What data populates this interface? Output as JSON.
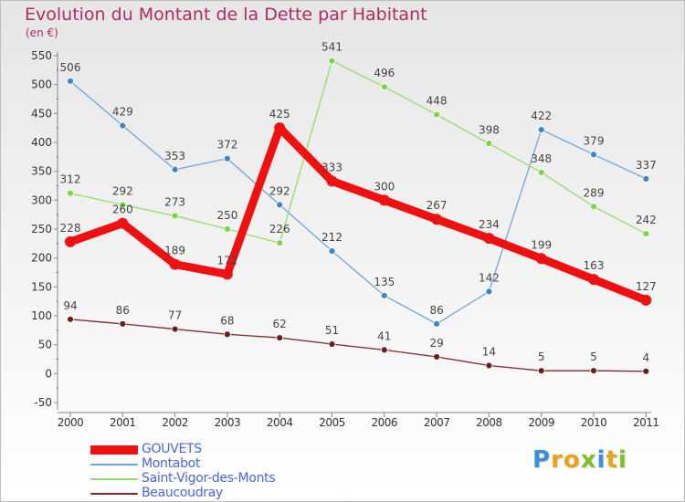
{
  "title": "Evolution du Montant de la Dette par Habitant",
  "subtitle": "(en €)",
  "logo": {
    "text": "Proxiti",
    "letters": [
      {
        "ch": "P",
        "color": "#3b8fd6"
      },
      {
        "ch": "r",
        "color": "#e7a21b"
      },
      {
        "ch": "o",
        "color": "#e7a21b"
      },
      {
        "ch": "x",
        "color": "#7fbf2a"
      },
      {
        "ch": "i",
        "color": "#3b8fd6"
      },
      {
        "ch": "t",
        "color": "#e7a21b"
      },
      {
        "ch": "i",
        "color": "#7fbf2a"
      }
    ]
  },
  "chart_data": {
    "type": "line",
    "x": [
      "2000",
      "2001",
      "2002",
      "2003",
      "2004",
      "2005",
      "2006",
      "2007",
      "2008",
      "2009",
      "2010",
      "2011"
    ],
    "ylim": [
      -50,
      550
    ],
    "yticks": [
      -50,
      0,
      50,
      100,
      150,
      200,
      250,
      300,
      350,
      400,
      450,
      500,
      550
    ],
    "grid": false,
    "legend_position": "bottom-left",
    "series": [
      {
        "name": "Montabot",
        "color": "#6fa6d8",
        "marker_color": "#3d86c6",
        "values": [
          506,
          429,
          353,
          372,
          292,
          212,
          135,
          86,
          142,
          422,
          379,
          337
        ]
      },
      {
        "name": "Saint-Vigor-des-Monts",
        "color": "#93dd6d",
        "marker_color": "#7bd34a",
        "values": [
          312,
          292,
          273,
          250,
          226,
          null,
          null,
          null,
          null,
          null,
          null,
          null
        ],
        "continuation_values": [
          null,
          null,
          null,
          null,
          null,
          541,
          496,
          448,
          398,
          348,
          289,
          242
        ]
      },
      {
        "name": "Beaucoudray",
        "color": "#7b2a2a",
        "marker_color": "#6b1e1e",
        "values": [
          94,
          86,
          77,
          68,
          62,
          51,
          41,
          29,
          14,
          5,
          5,
          4
        ]
      },
      {
        "name": "GOUVETS",
        "color": "#ee1111",
        "marker_color": "#ee1111",
        "values": [
          228,
          260,
          189,
          172,
          425,
          333,
          300,
          267,
          234,
          199,
          163,
          127
        ]
      }
    ]
  },
  "legend": [
    {
      "name": "GOUVETS",
      "color": "#ee1111"
    },
    {
      "name": "Montabot",
      "color": "#6fa6d8"
    },
    {
      "name": "Saint-Vigor-des-Monts",
      "color": "#93dd6d"
    },
    {
      "name": "Beaucoudray",
      "color": "#7b2a2a"
    }
  ]
}
